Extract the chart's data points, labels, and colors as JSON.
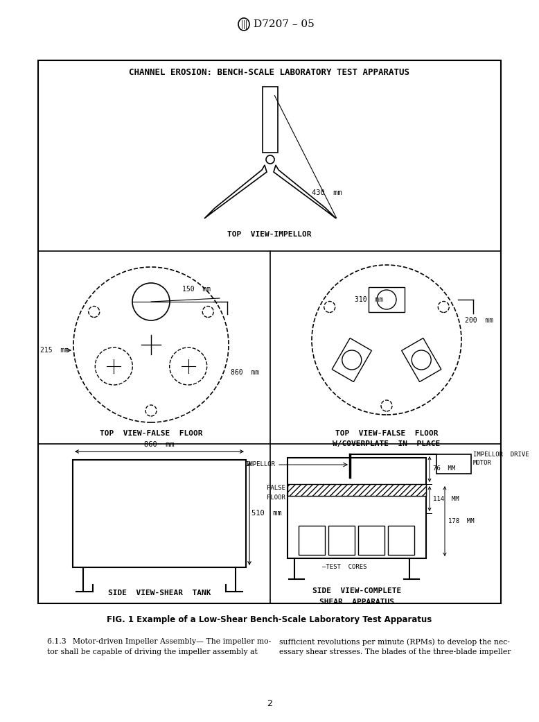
{
  "title": "CHANNEL EROSION: BENCH-SCALE LABORATORY TEST APPARATUS",
  "astm_label": "D7207 – 05",
  "fig_caption": "FIG. 1 Example of a Low-Shear Bench-Scale Laboratory Test Apparatus",
  "body_text_left": "6.1.3  Motor-driven Impeller Assembly— The impeller mo-\ntor shall be capable of driving the impeller assembly at",
  "body_text_right": "sufficient revolutions per minute (RPMs) to develop the nec-\nessary shear stresses. The blades of the three-blade impeller",
  "page_number": "2",
  "bg_color": "#ffffff",
  "impellor_label": "430  mm",
  "top_view_impellor_label": "TOP  VIEW-IMPELLOR",
  "top_view_false_floor_label": "TOP  VIEW-FALSE  FLOOR",
  "top_view_false_floor_cover_label1": "TOP  VIEW-FALSE  FLOOR",
  "top_view_false_floor_cover_label2": "W/COVERPLATE  IN  PLACE",
  "side_view_shear_label": "SIDE  VIEW-SHEAR  TANK",
  "side_view_complete_label1": "SIDE  VIEW-COMPLETE",
  "side_view_complete_label2": "SHEAR  APPARATUS",
  "dim_150": "150  mm",
  "dim_215": "215  mm",
  "dim_860_top": "860  mm",
  "dim_310": "310  mm",
  "dim_200": "200  mm",
  "dim_860_side": "860  mm",
  "dim_510": "510  mm",
  "dim_76": "76  MM",
  "dim_114": "114  MM",
  "dim_178": "178  MM",
  "impellor_label_side": "IMPELLOR",
  "false_floor_label1": "FALSE",
  "false_floor_label2": "FLOOR",
  "test_cores_label": "–TEST  CORES",
  "impellor_drive_motor_label1": "IMPELLOR  DRIVE",
  "impellor_drive_motor_label2": "MOTOR"
}
